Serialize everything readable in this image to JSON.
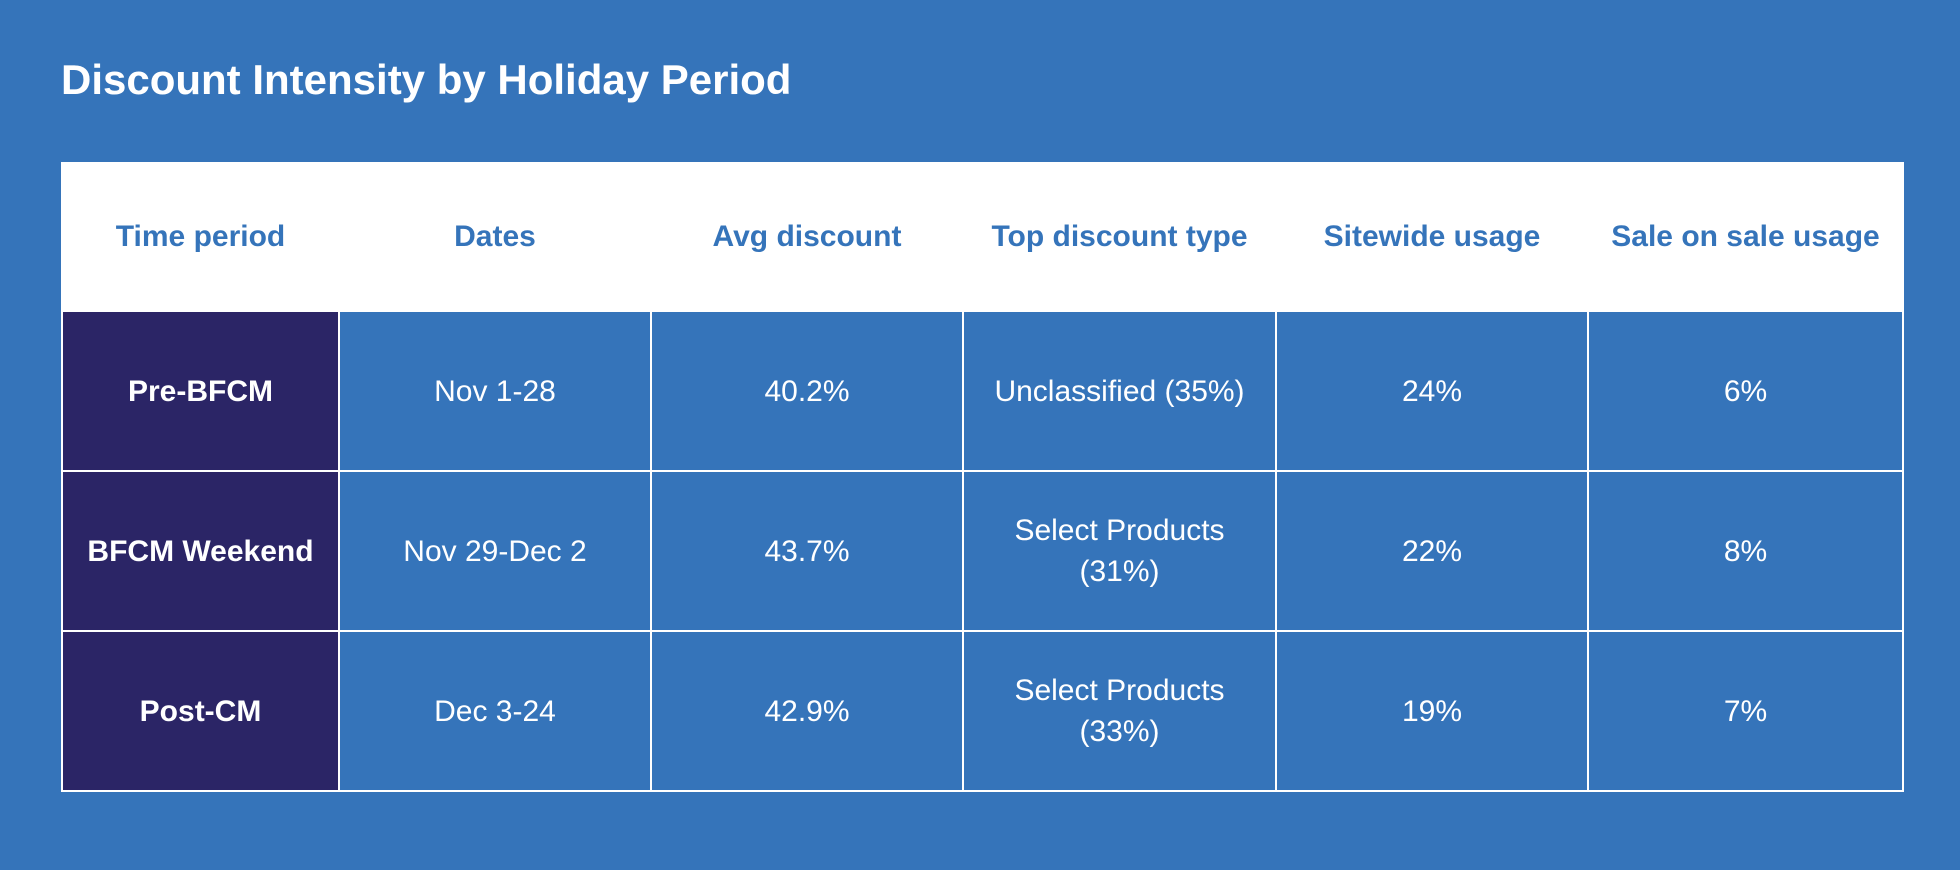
{
  "chart_data": {
    "type": "table",
    "title": "Discount Intensity by Holiday Period",
    "columns": [
      "Time period",
      "Dates",
      "Avg discount",
      "Top discount type",
      "Sitewide usage",
      "Sale on sale usage"
    ],
    "rows": [
      [
        "Pre-BFCM",
        "Nov 1-28",
        "40.2%",
        "Unclassified (35%)",
        "24%",
        "6%"
      ],
      [
        "BFCM Weekend",
        "Nov 29-Dec 2",
        "43.7%",
        "Select Products (31%)",
        "22%",
        "8%"
      ],
      [
        "Post-CM",
        "Dec 3-24",
        "42.9%",
        "Select Products (33%)",
        "19%",
        "7%"
      ]
    ],
    "colors": {
      "background": "#3574BA",
      "header_background": "#FFFFFF",
      "header_text": "#3574BA",
      "period_cell_background": "#2B2566",
      "cell_text": "#FFFFFF",
      "grid_lines": "#FFFFFF"
    }
  }
}
